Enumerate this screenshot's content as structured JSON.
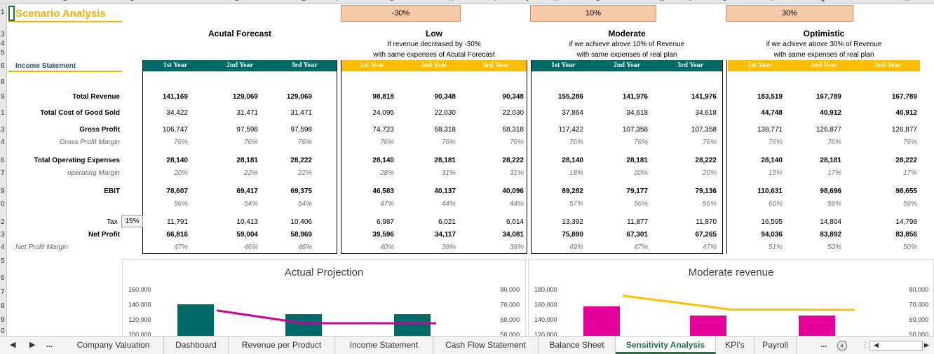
{
  "sheet": {
    "title": "Scenario Analysis",
    "income_label": "Income Statement",
    "tax_label": "Tax",
    "tax_rate": "15%"
  },
  "row_numbers": [
    "1",
    "3",
    "4",
    "5",
    "6",
    "8",
    "9",
    "1",
    "3",
    "4",
    "6",
    "7",
    "9",
    "0",
    "2",
    "3",
    "4",
    "5",
    "6",
    "7",
    "8",
    "9",
    "0"
  ],
  "col_letters": [
    "B",
    "C",
    "D",
    "E",
    "F",
    "G",
    "H",
    "I",
    "J",
    "K",
    "L",
    "M",
    "N",
    "O",
    "P",
    "Q",
    "R"
  ],
  "pct": {
    "low": "-30%",
    "moderate": "10%",
    "optimistic": "30%"
  },
  "scenarios": {
    "actual": {
      "title": "Acutal Forecast",
      "desc1": "",
      "desc2": ""
    },
    "low": {
      "title": "Low",
      "desc1": "If revenue decreased by -30%",
      "desc2": "with same expenses of Acutal Forecast"
    },
    "moderate": {
      "title": "Moderate",
      "desc1": "if we achieve above 10% of Revenue",
      "desc2": "with same expenses of real plan"
    },
    "optimistic": {
      "title": "Optimistic",
      "desc1": "if we achieve above 30% of Revenue",
      "desc2": "with same expenses of real plan"
    }
  },
  "years": [
    "1st Year",
    "2nd Year",
    "3rd Year"
  ],
  "rows": {
    "total_revenue": "Total Revenue",
    "total_cogs": "Total Cost of Good Sold",
    "gross_profit": "Gross Profit",
    "gross_margin": "Gross Profit Margin",
    "total_opex": "Total Operating Expenses",
    "op_margin": "operating Margin",
    "ebit": "EBIT",
    "tax": "Tax",
    "net_profit": "Net Profit",
    "net_margin": "Net Profit Margin"
  },
  "values": {
    "actual": {
      "total_revenue": [
        "141,169",
        "129,069",
        "129,069"
      ],
      "total_cogs": [
        "34,422",
        "31,471",
        "31,471"
      ],
      "gross_profit": [
        "106,747",
        "97,598",
        "97,598"
      ],
      "gross_margin": [
        "76%",
        "76%",
        "76%"
      ],
      "total_opex": [
        "28,140",
        "28,181",
        "28,222"
      ],
      "op_margin": [
        "20%",
        "22%",
        "22%"
      ],
      "ebit": [
        "78,607",
        "69,417",
        "69,375"
      ],
      "ebit_margin": [
        "56%",
        "54%",
        "54%"
      ],
      "tax": [
        "11,791",
        "10,413",
        "10,406"
      ],
      "net_profit": [
        "66,816",
        "59,004",
        "58,969"
      ],
      "net_margin": [
        "47%",
        "46%",
        "46%"
      ]
    },
    "low": {
      "total_revenue": [
        "98,818",
        "90,348",
        "90,348"
      ],
      "total_cogs": [
        "24,095",
        "22,030",
        "22,030"
      ],
      "gross_profit": [
        "74,723",
        "68,318",
        "68,318"
      ],
      "gross_margin": [
        "76%",
        "76%",
        "76%"
      ],
      "total_opex": [
        "28,140",
        "28,181",
        "28,222"
      ],
      "op_margin": [
        "28%",
        "31%",
        "31%"
      ],
      "ebit": [
        "46,583",
        "40,137",
        "40,096"
      ],
      "ebit_margin": [
        "47%",
        "44%",
        "44%"
      ],
      "tax": [
        "6,987",
        "6,021",
        "6,014"
      ],
      "net_profit": [
        "39,596",
        "34,117",
        "34,081"
      ],
      "net_margin": [
        "40%",
        "38%",
        "38%"
      ]
    },
    "moderate": {
      "total_revenue": [
        "155,286",
        "141,976",
        "141,976"
      ],
      "total_cogs": [
        "37,864",
        "34,618",
        "34,618"
      ],
      "gross_profit": [
        "117,422",
        "107,358",
        "107,358"
      ],
      "gross_margin": [
        "76%",
        "76%",
        "76%"
      ],
      "total_opex": [
        "28,140",
        "28,181",
        "28,222"
      ],
      "op_margin": [
        "18%",
        "20%",
        "20%"
      ],
      "ebit": [
        "89,282",
        "79,177",
        "79,136"
      ],
      "ebit_margin": [
        "57%",
        "56%",
        "56%"
      ],
      "tax": [
        "13,392",
        "11,877",
        "11,870"
      ],
      "net_profit": [
        "75,890",
        "67,301",
        "67,265"
      ],
      "net_margin": [
        "49%",
        "47%",
        "47%"
      ]
    },
    "optimistic": {
      "total_revenue": [
        "183,519",
        "167,789",
        "167,789"
      ],
      "total_cogs": [
        "44,748",
        "40,912",
        "40,912"
      ],
      "gross_profit": [
        "138,771",
        "126,877",
        "126,877"
      ],
      "gross_margin": [
        "76%",
        "76%",
        "76%"
      ],
      "total_opex": [
        "28,140",
        "28,181",
        "28,222"
      ],
      "op_margin": [
        "15%",
        "17%",
        "17%"
      ],
      "ebit": [
        "110,631",
        "98,696",
        "98,655"
      ],
      "ebit_margin": [
        "60%",
        "59%",
        "59%"
      ],
      "tax": [
        "16,595",
        "14,804",
        "14,798"
      ],
      "net_profit": [
        "94,036",
        "83,892",
        "83,856"
      ],
      "net_margin": [
        "51%",
        "50%",
        "50%"
      ]
    }
  },
  "chart_data": [
    {
      "type": "bar",
      "title": "Actual Projection",
      "categories": [
        "",
        "",
        ""
      ],
      "series": [
        {
          "values": [
            141169,
            129069,
            129069
          ],
          "color": "#006b66"
        },
        {
          "values": [
            66816,
            59004,
            58969
          ],
          "color": "#cc0099",
          "type": "line",
          "axis": "secondary"
        }
      ],
      "left_ticks": [
        "160,000",
        "140,000",
        "120,000",
        "100,000"
      ],
      "right_ticks": [
        "80,000",
        "70,000",
        "60,000",
        "50,000"
      ],
      "ylim": [
        100000,
        160000
      ],
      "y2lim": [
        50000,
        80000
      ]
    },
    {
      "type": "bar",
      "title": "Moderate revenue",
      "categories": [
        "",
        "",
        ""
      ],
      "series": [
        {
          "values": [
            155286,
            141976,
            141976
          ],
          "color": "#e6009a"
        },
        {
          "values": [
            75890,
            67301,
            67265
          ],
          "color": "#ffbf00",
          "type": "line",
          "axis": "secondary"
        }
      ],
      "left_ticks": [
        "180,000",
        "160,000",
        "140,000",
        "120,000"
      ],
      "right_ticks": [
        "80,000",
        "70,000",
        "60,000",
        "50,000"
      ],
      "ylim": [
        110000,
        180000
      ],
      "y2lim": [
        50000,
        80000
      ]
    }
  ],
  "tabs": {
    "more_left": "...",
    "items": [
      "Company Valuation",
      "Dashboard",
      "Revenue per Product",
      "Income Statement",
      "Cash Flow Statement",
      "Balance Sheet",
      "Sensitivity Analysis",
      "KPI's",
      "Payroll"
    ],
    "more_right": "...",
    "add": "+",
    "active_index": 6
  },
  "colors": {
    "green": "#006b66",
    "yellow": "#ffbf00",
    "title": "#f5b300",
    "pct_box": "#f8c9a8"
  }
}
